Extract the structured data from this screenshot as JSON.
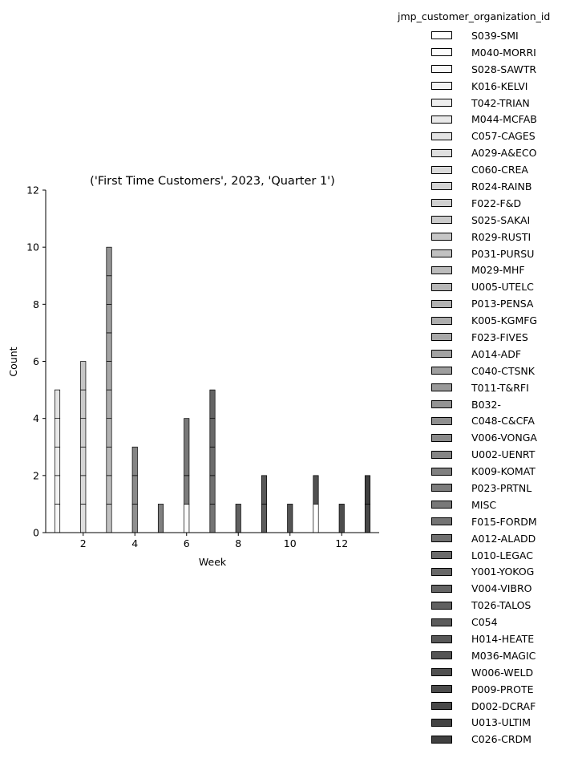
{
  "chart_data": {
    "type": "bar",
    "title": "('First Time Customers', 2023, 'Quarter 1')",
    "xlabel": "Week",
    "ylabel": "Count",
    "xlim": [
      0.55,
      13.45
    ],
    "ylim": [
      0,
      12
    ],
    "xticks": [
      2,
      4,
      6,
      8,
      10,
      12
    ],
    "yticks": [
      0,
      2,
      4,
      6,
      8,
      10,
      12
    ],
    "grid": false,
    "legend_position": "right",
    "legend_title": "jmp_customer_organization_id",
    "series": [
      {
        "name": "S039-SMI",
        "color": "#ffffff",
        "data": [
          [
            11,
            1
          ]
        ]
      },
      {
        "name": "M040-MORRI",
        "color": "#fcfcfc",
        "data": [
          [
            6,
            1
          ]
        ]
      },
      {
        "name": "S028-SAWTR",
        "color": "#f8f8f8",
        "data": [
          [
            1,
            1
          ]
        ]
      },
      {
        "name": "K016-KELVI",
        "color": "#f3f3f3",
        "data": [
          [
            1,
            1
          ]
        ]
      },
      {
        "name": "T042-TRIAN",
        "color": "#eeeeee",
        "data": [
          [
            1,
            1
          ]
        ]
      },
      {
        "name": "M044-MCFAB",
        "color": "#e9e9e9",
        "data": [
          [
            1,
            1
          ]
        ]
      },
      {
        "name": "C057-CAGES",
        "color": "#e4e4e4",
        "data": [
          [
            1,
            1
          ]
        ]
      },
      {
        "name": "A029-A&ECO",
        "color": "#dfdfdf",
        "data": [
          [
            2,
            1
          ]
        ]
      },
      {
        "name": "C060-CREA",
        "color": "#dadada",
        "data": [
          [
            2,
            1
          ]
        ]
      },
      {
        "name": "R024-RAINB",
        "color": "#d5d5d5",
        "data": [
          [
            2,
            1
          ]
        ]
      },
      {
        "name": "F022-F&D",
        "color": "#d0d0d0",
        "data": [
          [
            2,
            1
          ]
        ]
      },
      {
        "name": "S025-SAKAI",
        "color": "#cbcbcb",
        "data": [
          [
            2,
            1
          ]
        ]
      },
      {
        "name": "R029-RUSTI",
        "color": "#c6c6c6",
        "data": [
          [
            2,
            1
          ]
        ]
      },
      {
        "name": "P031-PURSU",
        "color": "#c1c1c1",
        "data": [
          [
            3,
            1
          ]
        ]
      },
      {
        "name": "M029-MHF",
        "color": "#bcbcbc",
        "data": [
          [
            3,
            1
          ]
        ]
      },
      {
        "name": "U005-UTELC",
        "color": "#b7b7b7",
        "data": [
          [
            3,
            1
          ]
        ]
      },
      {
        "name": "P013-PENSA",
        "color": "#b2b2b2",
        "data": [
          [
            3,
            1
          ]
        ]
      },
      {
        "name": "K005-KGMFG",
        "color": "#adadad",
        "data": [
          [
            3,
            1
          ]
        ]
      },
      {
        "name": "F023-FIVES",
        "color": "#a8a8a8",
        "data": [
          [
            3,
            1
          ]
        ]
      },
      {
        "name": "A014-ADF",
        "color": "#a3a3a3",
        "data": [
          [
            3,
            1
          ]
        ]
      },
      {
        "name": "C040-CTSNK",
        "color": "#9e9e9e",
        "data": [
          [
            3,
            1
          ]
        ]
      },
      {
        "name": "T011-T&RFI",
        "color": "#999999",
        "data": [
          [
            3,
            1
          ]
        ]
      },
      {
        "name": "B032-",
        "color": "#949494",
        "data": [
          [
            3,
            1
          ]
        ]
      },
      {
        "name": "C048-C&CFA",
        "color": "#8f8f8f",
        "data": [
          [
            4,
            1
          ]
        ]
      },
      {
        "name": "V006-VONGA",
        "color": "#8a8a8a",
        "data": [
          [
            4,
            1
          ]
        ]
      },
      {
        "name": "U002-UENRT",
        "color": "#858585",
        "data": [
          [
            4,
            1
          ]
        ]
      },
      {
        "name": "K009-KOMAT",
        "color": "#808080",
        "data": [
          [
            5,
            1
          ]
        ]
      },
      {
        "name": "P023-PRTNL",
        "color": "#7c7c7c",
        "data": [
          [
            6,
            1
          ]
        ]
      },
      {
        "name": "MISC",
        "color": "#787878",
        "data": [
          [
            6,
            2
          ]
        ]
      },
      {
        "name": "F015-FORDM",
        "color": "#747474",
        "data": [
          [
            7,
            1
          ]
        ]
      },
      {
        "name": "A012-ALADD",
        "color": "#707070",
        "data": [
          [
            7,
            1
          ]
        ]
      },
      {
        "name": "L010-LEGAC",
        "color": "#6c6c6c",
        "data": [
          [
            7,
            1
          ]
        ]
      },
      {
        "name": "Y001-YOKOG",
        "color": "#686868",
        "data": [
          [
            7,
            1
          ]
        ]
      },
      {
        "name": "V004-VIBRO",
        "color": "#646464",
        "data": [
          [
            7,
            1
          ]
        ]
      },
      {
        "name": "T026-TALOS",
        "color": "#606060",
        "data": [
          [
            8,
            1
          ]
        ]
      },
      {
        "name": "C054",
        "color": "#5c5c5c",
        "data": [
          [
            9,
            1
          ]
        ]
      },
      {
        "name": "H014-HEATE",
        "color": "#585858",
        "data": [
          [
            9,
            1
          ]
        ]
      },
      {
        "name": "M036-MAGIC",
        "color": "#545454",
        "data": [
          [
            10,
            1
          ]
        ]
      },
      {
        "name": "W006-WELD",
        "color": "#505050",
        "data": [
          [
            11,
            1
          ]
        ]
      },
      {
        "name": "P009-PROTE",
        "color": "#4c4c4c",
        "data": [
          [
            12,
            1
          ]
        ]
      },
      {
        "name": "D002-DCRAF",
        "color": "#484848",
        "data": [
          [
            13,
            1
          ]
        ]
      },
      {
        "name": "U013-ULTIM",
        "color": "#444444",
        "data": []
      },
      {
        "name": "C026-CRDM",
        "color": "#404040",
        "data": [
          [
            13,
            1
          ]
        ]
      }
    ]
  }
}
